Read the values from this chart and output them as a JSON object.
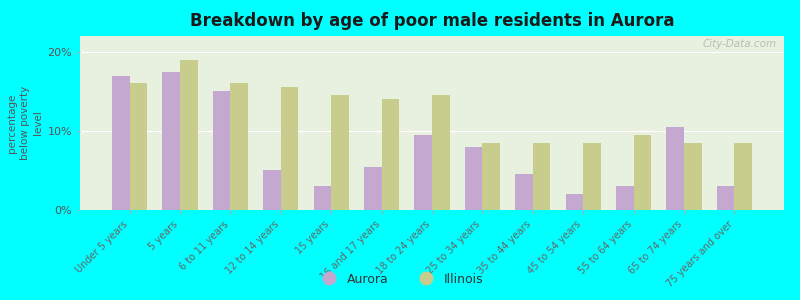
{
  "title": "Breakdown by age of poor male residents in Aurora",
  "ylabel": "percentage\nbelow poverty\nlevel",
  "categories": [
    "Under 5 years",
    "5 years",
    "6 to 11 years",
    "12 to 14 years",
    "15 years",
    "16 and 17 years",
    "18 to 24 years",
    "25 to 34 years",
    "35 to 44 years",
    "45 to 54 years",
    "55 to 64 years",
    "65 to 74 years",
    "75 years and over"
  ],
  "aurora_values": [
    17.0,
    17.5,
    15.0,
    5.0,
    3.0,
    5.5,
    9.5,
    8.0,
    4.5,
    2.0,
    3.0,
    10.5,
    3.0
  ],
  "illinois_values": [
    16.0,
    19.0,
    16.0,
    15.5,
    14.5,
    14.0,
    14.5,
    8.5,
    8.5,
    8.5,
    9.5,
    8.5,
    8.5
  ],
  "aurora_color": "#c4a8d0",
  "illinois_color": "#c8cc8c",
  "background_color": "#00ffff",
  "plot_bg_top": "#e8f0e0",
  "plot_bg_bottom": "#f5f8f0",
  "ylim": [
    0,
    22
  ],
  "yticks": [
    0,
    10,
    20
  ],
  "ytick_labels": [
    "0%",
    "10%",
    "20%"
  ],
  "watermark": "City-Data.com"
}
